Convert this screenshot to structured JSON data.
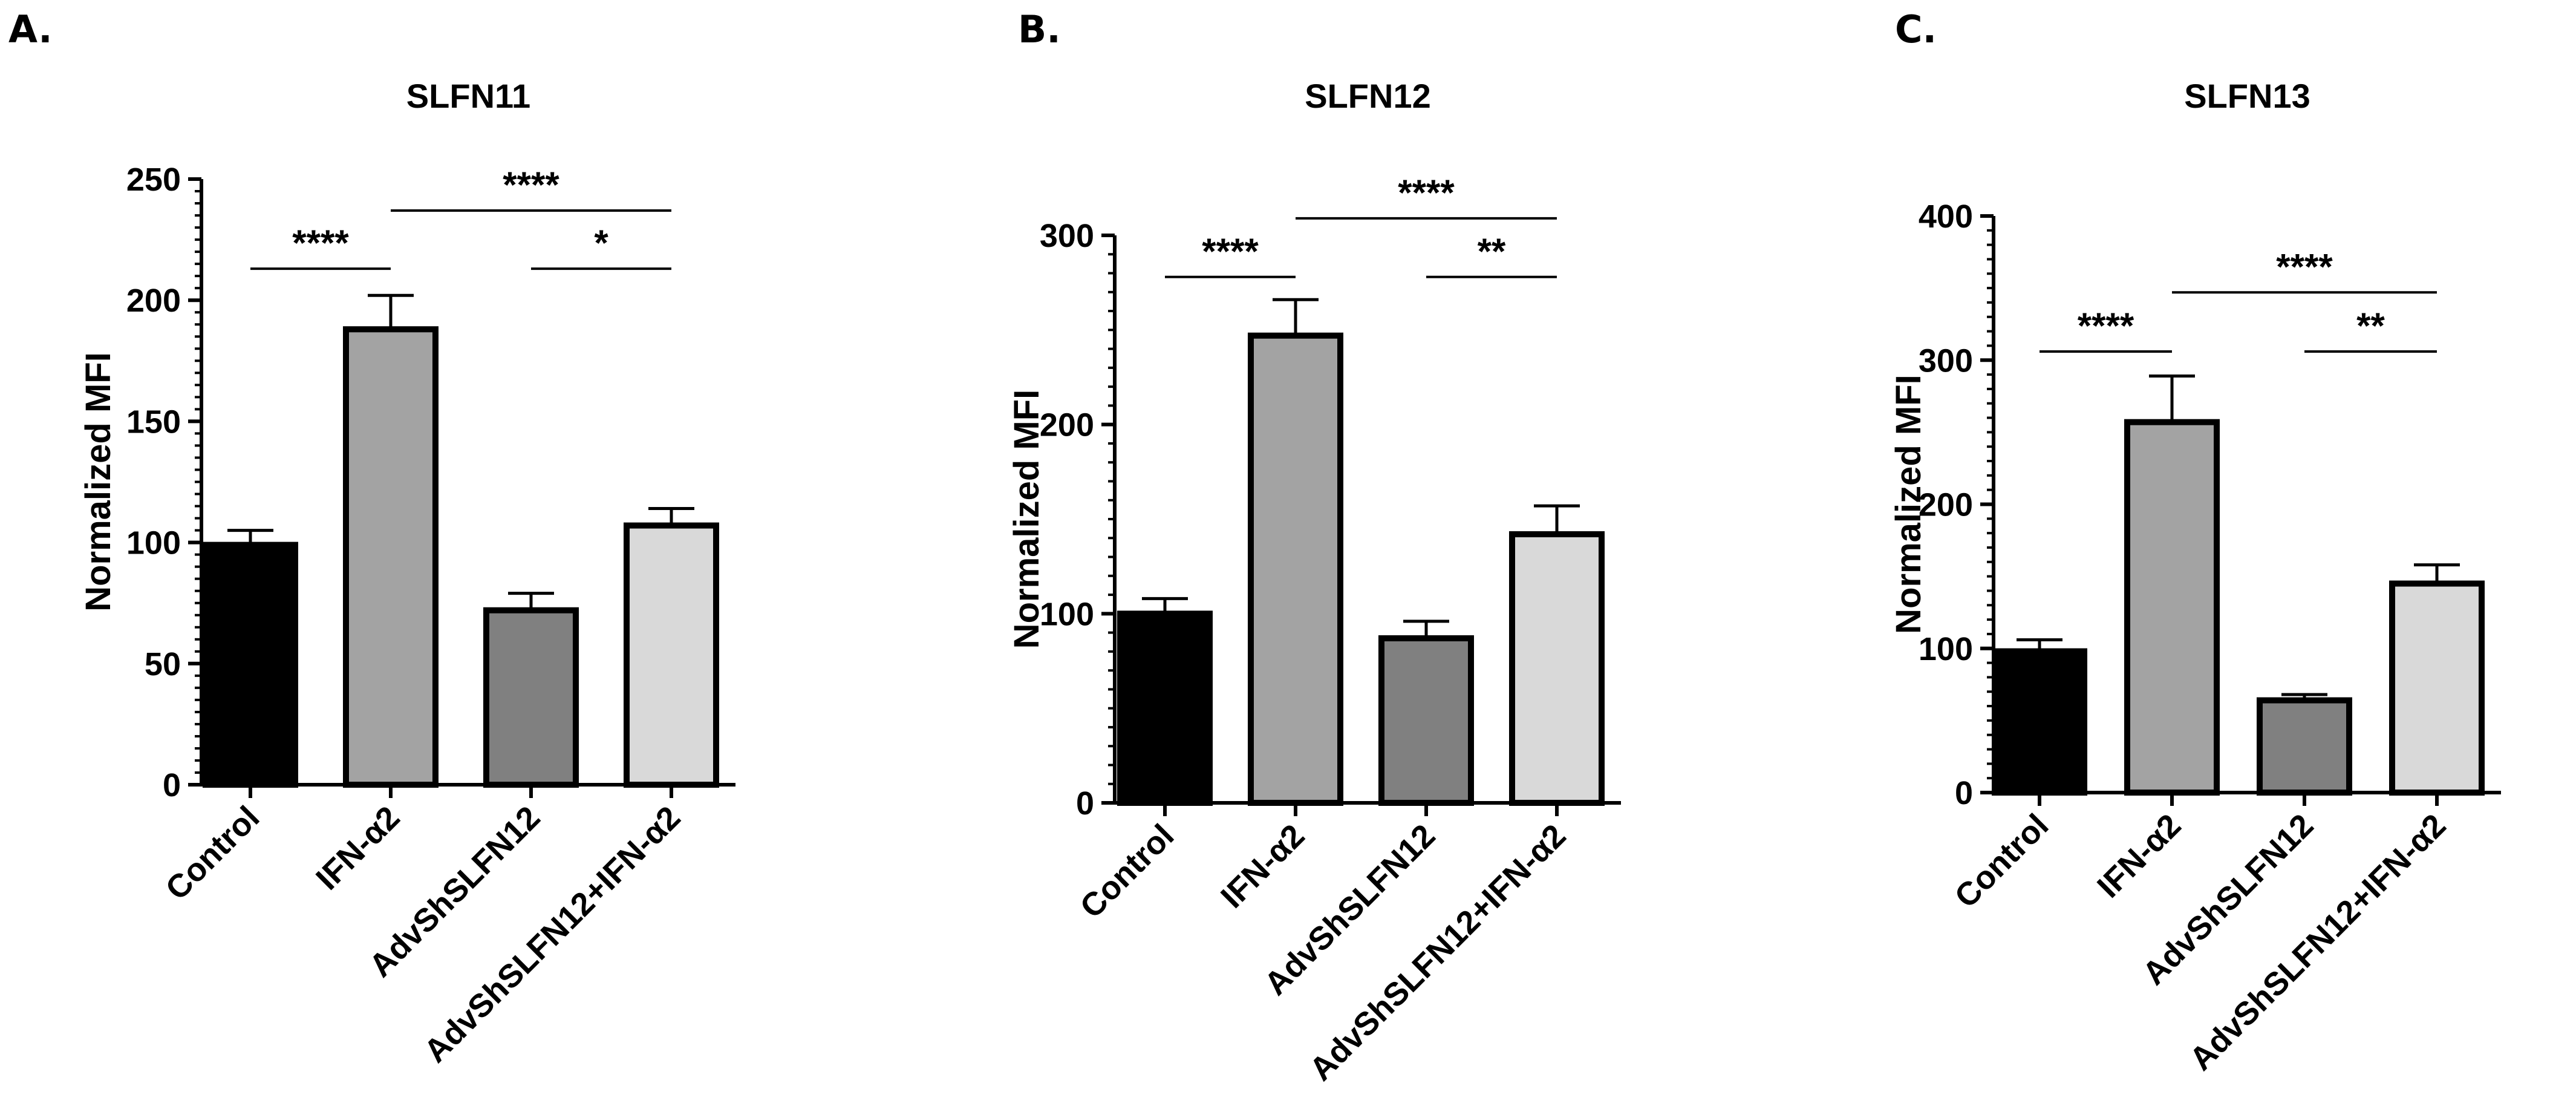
{
  "chart_data": [
    {
      "type": "bar",
      "panel_label": "A.",
      "title": "SLFN11",
      "ylabel": "Normalized MFI",
      "xlabel": "",
      "ylim": [
        0,
        250
      ],
      "yticks": [
        0,
        50,
        100,
        150,
        200,
        250
      ],
      "categories": [
        "Control",
        "IFN-α2",
        "AdvShSLFN12",
        "AdvShSLFN12+IFN-α2"
      ],
      "values": [
        99,
        188,
        72,
        107
      ],
      "errors": [
        6,
        14,
        7,
        7
      ],
      "colors": [
        "#000000",
        "#a3a3a3",
        "#808080",
        "#d9d9d9"
      ],
      "significance": [
        {
          "from": 0,
          "to": 1,
          "label": "****",
          "level": 213
        },
        {
          "from": 1,
          "to": 3,
          "label": "****",
          "level": 237
        },
        {
          "from": 2,
          "to": 3,
          "label": "*",
          "level": 213
        }
      ]
    },
    {
      "type": "bar",
      "panel_label": "B.",
      "title": "SLFN12",
      "ylabel": "Normalized MFI",
      "xlabel": "",
      "ylim": [
        0,
        300
      ],
      "yticks": [
        0,
        100,
        200,
        300
      ],
      "categories": [
        "Control",
        "IFN-α2",
        "AdvShSLFN12",
        "AdvShSLFN12+IFN-α2"
      ],
      "values": [
        100,
        247,
        87,
        142
      ],
      "errors": [
        8,
        19,
        9,
        15
      ],
      "colors": [
        "#000000",
        "#a3a3a3",
        "#808080",
        "#d9d9d9"
      ],
      "significance": [
        {
          "from": 0,
          "to": 1,
          "label": "****",
          "level": 278
        },
        {
          "from": 1,
          "to": 3,
          "label": "****",
          "level": 309
        },
        {
          "from": 2,
          "to": 3,
          "label": "**",
          "level": 278
        }
      ]
    },
    {
      "type": "bar",
      "panel_label": "C.",
      "title": "SLFN13",
      "ylabel": "Normalized MFI",
      "xlabel": "",
      "ylim": [
        0,
        400
      ],
      "yticks": [
        0,
        100,
        200,
        300,
        400
      ],
      "categories": [
        "Control",
        "IFN-α2",
        "AdvShSLFN12",
        "AdvShSLFN12+IFN-α2"
      ],
      "values": [
        98,
        257,
        64,
        145
      ],
      "errors": [
        8,
        32,
        4,
        13
      ],
      "colors": [
        "#000000",
        "#a3a3a3",
        "#808080",
        "#d9d9d9"
      ],
      "significance": [
        {
          "from": 0,
          "to": 1,
          "label": "****",
          "level": 306
        },
        {
          "from": 1,
          "to": 3,
          "label": "****",
          "level": 347
        },
        {
          "from": 2,
          "to": 3,
          "label": "**",
          "level": 306
        }
      ]
    }
  ]
}
